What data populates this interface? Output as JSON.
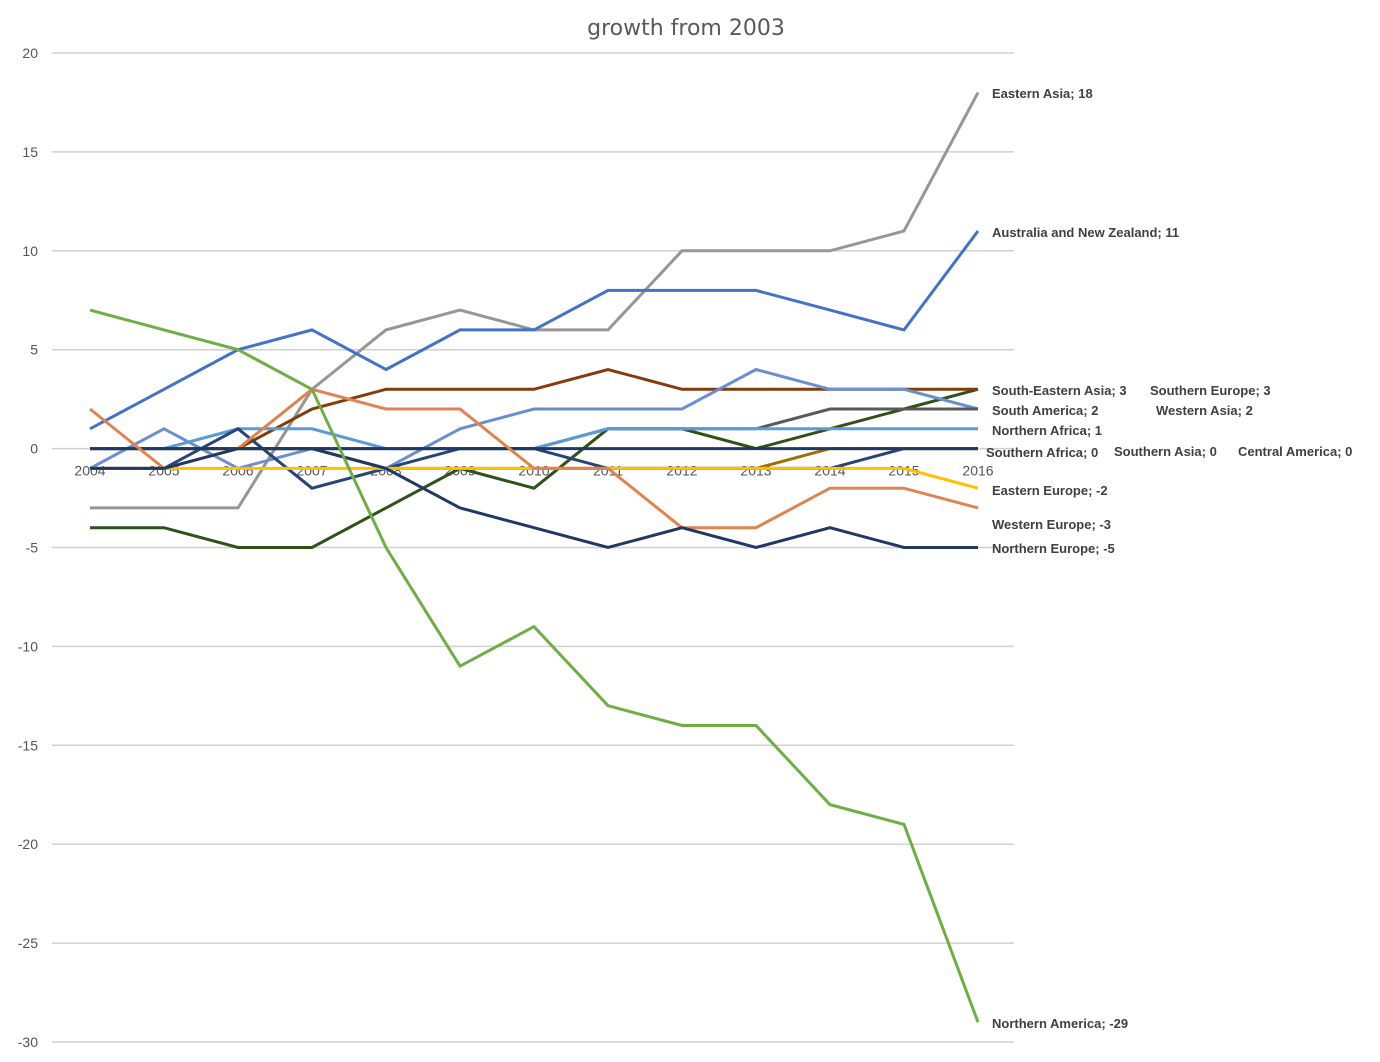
{
  "chart_data": {
    "type": "line",
    "title": "growth from 2003",
    "xlabel": "",
    "ylabel": "",
    "ylim": [
      -30,
      20
    ],
    "yticks": [
      20,
      15,
      10,
      5,
      0,
      -5,
      -10,
      -15,
      -20,
      -25,
      -30
    ],
    "x": [
      "2004",
      "2005",
      "2006",
      "2007",
      "2008",
      "2009",
      "2010",
      "2011",
      "2012",
      "2013",
      "2014",
      "2015",
      "2016"
    ],
    "grid": true,
    "legend": "none",
    "series": [
      {
        "name": "Eastern Asia",
        "color": "#969696",
        "values": [
          -3,
          -3,
          -3,
          3,
          6,
          7,
          6,
          6,
          10,
          10,
          10,
          11,
          18
        ],
        "end_label": "Eastern Asia; 18"
      },
      {
        "name": "Australia and New Zealand",
        "color": "#4472c4",
        "values": [
          1,
          3,
          5,
          6,
          4,
          6,
          6,
          8,
          8,
          8,
          7,
          6,
          11
        ],
        "end_label": "Australia and New Zealand; 11"
      },
      {
        "name": "South-Eastern Asia",
        "color": "#2f5218",
        "values": [
          -4,
          -4,
          -5,
          -5,
          -3,
          -1,
          -2,
          1,
          1,
          0,
          1,
          2,
          3
        ],
        "end_label": "South-Eastern Asia; 3"
      },
      {
        "name": "Southern Europe",
        "color": "#843c0c",
        "values": [
          0,
          0,
          0,
          2,
          3,
          3,
          3,
          4,
          3,
          3,
          3,
          3,
          3
        ],
        "end_label": "Southern Europe; 3"
      },
      {
        "name": "South America",
        "color": "#6a8fcf",
        "values": [
          -1,
          1,
          -1,
          0,
          -1,
          1,
          2,
          2,
          2,
          4,
          3,
          3,
          2
        ],
        "end_label": "South America; 2"
      },
      {
        "name": "Western Asia",
        "color": "#595959",
        "values": [
          0,
          0,
          0,
          0,
          0,
          0,
          0,
          1,
          1,
          1,
          2,
          2,
          2
        ],
        "end_label": "Western Asia; 2"
      },
      {
        "name": "Northern Africa",
        "color": "#5b9bd5",
        "values": [
          0,
          0,
          1,
          1,
          0,
          0,
          0,
          1,
          1,
          1,
          1,
          1,
          1
        ],
        "end_label": "Northern Africa; 1"
      },
      {
        "name": "Southern Africa",
        "color": "#264478",
        "values": [
          -1,
          -1,
          1,
          -2,
          -1,
          0,
          0,
          -1,
          -1,
          -1,
          -1,
          0,
          0
        ],
        "end_label": "Southern Africa; 0"
      },
      {
        "name": "Southern Asia",
        "color": "#9e7006",
        "values": [
          0,
          0,
          0,
          0,
          -1,
          -1,
          -1,
          -1,
          -1,
          -1,
          0,
          0,
          0
        ],
        "end_label": "Southern Asia; 0"
      },
      {
        "name": "Central America",
        "color": "#1f3864",
        "values": [
          0,
          0,
          0,
          0,
          0,
          0,
          0,
          0,
          0,
          0,
          0,
          0,
          0
        ],
        "end_label": "Central America; 0"
      },
      {
        "name": "Eastern Europe",
        "color": "#ffc000",
        "values": [
          -1,
          -1,
          -1,
          -1,
          -1,
          -1,
          -1,
          -1,
          -1,
          -1,
          -1,
          -1,
          -2
        ],
        "end_label": "Eastern Europe; -2"
      },
      {
        "name": "Western Europe",
        "color": "#dd8452",
        "values": [
          2,
          -1,
          0,
          3,
          2,
          2,
          -1,
          -1,
          -4,
          -4,
          -2,
          -2,
          -3
        ],
        "end_label": "Western Europe; -3"
      },
      {
        "name": "Northern Europe",
        "color": "#203864",
        "values": [
          -1,
          -1,
          0,
          0,
          -1,
          -3,
          -4,
          -5,
          -4,
          -5,
          -4,
          -5,
          -5
        ],
        "end_label": "Northern Europe; -5"
      },
      {
        "name": "Northern America",
        "color": "#70ad47",
        "values": [
          7,
          6,
          5,
          3,
          -5,
          -11,
          -9,
          -13,
          -14,
          -14,
          -18,
          -19,
          -29
        ],
        "end_label": "Northern America; -29"
      }
    ]
  }
}
